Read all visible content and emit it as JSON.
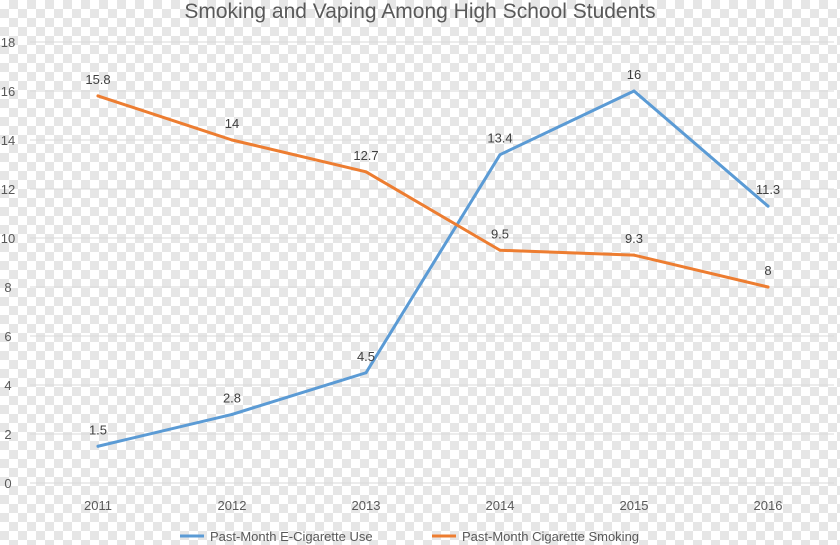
{
  "chart_data": {
    "type": "line",
    "title": "Smoking and Vaping Among High School Students",
    "xlabel": "",
    "ylabel": "",
    "categories": [
      "2011",
      "2012",
      "2013",
      "2014",
      "2015",
      "2016"
    ],
    "ylim": [
      0,
      18
    ],
    "yticks": [
      "0",
      "2",
      "4",
      "6",
      "8",
      "10",
      "12",
      "14",
      "16",
      "18"
    ],
    "grid": true,
    "legend_position": "bottom",
    "series": [
      {
        "name": "Past-Month E-Cigarette Use",
        "color": "#5b9bd5",
        "values": [
          1.5,
          2.8,
          4.5,
          13.4,
          16,
          11.3
        ],
        "labels": [
          "1.5",
          "2.8",
          "4.5",
          "13.4",
          "16",
          "11.3"
        ]
      },
      {
        "name": "Past-Month Cigarette Smoking",
        "color": "#ed7d31",
        "values": [
          15.8,
          14,
          12.7,
          9.5,
          9.3,
          8
        ],
        "labels": [
          "15.8",
          "14",
          "12.7",
          "9.5",
          "9.3",
          "8"
        ]
      }
    ]
  }
}
